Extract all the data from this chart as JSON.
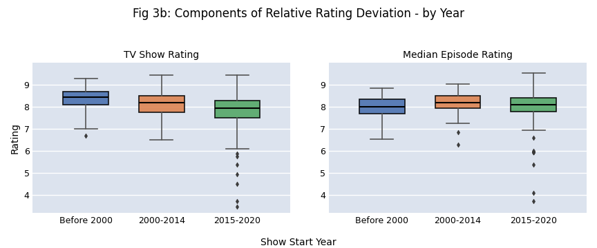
{
  "title": "Fig 3b: Components of Relative Rating Deviation - by Year",
  "xlabel": "Show Start Year",
  "ylabel": "Rating",
  "subplot_titles": [
    "TV Show Rating",
    "Median Episode Rating"
  ],
  "categories": [
    "Before 2000",
    "2000-2014",
    "2015-2020"
  ],
  "colors": [
    "#4c72b0",
    "#dd8452",
    "#55a868"
  ],
  "background_color": "#dce3ee",
  "figure_facecolor": "#ffffff",
  "tv_show_rating": {
    "Before 2000": {
      "whislo": 7.0,
      "q1": 8.1,
      "med": 8.45,
      "q3": 8.7,
      "whishi": 9.3,
      "fliers": [
        6.7
      ]
    },
    "2000-2014": {
      "whislo": 6.5,
      "q1": 7.75,
      "med": 8.2,
      "q3": 8.5,
      "whishi": 9.45,
      "fliers": []
    },
    "2015-2020": {
      "whislo": 6.1,
      "q1": 7.5,
      "med": 7.95,
      "q3": 8.3,
      "whishi": 9.45,
      "fliers": [
        5.9,
        5.75,
        5.4,
        4.95,
        4.5,
        3.75,
        3.5
      ]
    }
  },
  "median_episode_rating": {
    "Before 2000": {
      "whislo": 6.55,
      "q1": 7.7,
      "med": 8.0,
      "q3": 8.35,
      "whishi": 8.85,
      "fliers": []
    },
    "2000-2014": {
      "whislo": 7.25,
      "q1": 7.95,
      "med": 8.2,
      "q3": 8.5,
      "whishi": 9.05,
      "fliers": [
        6.85,
        6.3
      ]
    },
    "2015-2020": {
      "whislo": 6.95,
      "q1": 7.8,
      "med": 8.1,
      "q3": 8.4,
      "whishi": 9.55,
      "fliers": [
        6.6,
        6.0,
        5.95,
        5.95,
        5.95,
        5.95,
        5.95,
        5.4,
        4.1,
        3.75
      ]
    }
  },
  "ylim": [
    3.2,
    10.0
  ],
  "yticks": [
    4,
    5,
    6,
    7,
    8,
    9
  ]
}
